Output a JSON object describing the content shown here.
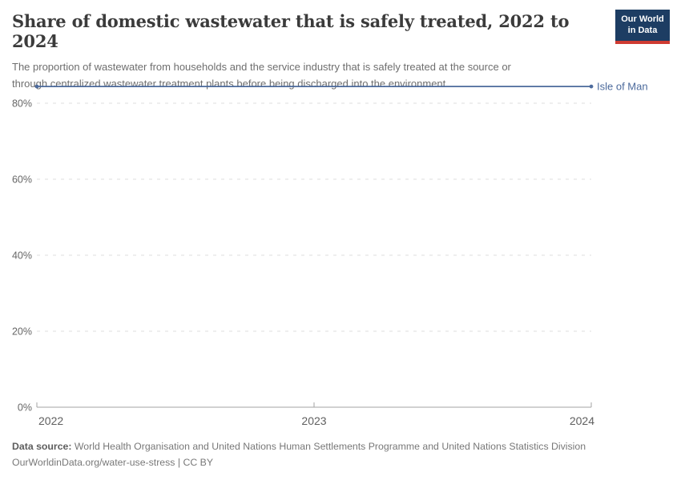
{
  "header": {
    "title": "Share of domestic wastewater that is safely treated, 2022 to 2024",
    "subtitle_lines": [
      "The proportion of wastewater from households and the service industry that is safely treated at the source or",
      "through centralized wastewater treatment plants before being discharged into the environment."
    ]
  },
  "logo": {
    "line1": "Our World",
    "line2": "in Data"
  },
  "footer": {
    "source_label": "Data source:",
    "source_text": " World Health Organisation and United Nations Human Settlements Programme and United Nations Statistics Division",
    "license_line": "OurWorldinData.org/water-use-stress | CC BY"
  },
  "colors": {
    "series_blue": "#4C6A9C",
    "grid": "#dcdcdc",
    "axis": "#a3a3a3",
    "tick_label": "#666666",
    "logo_navy": "#1d3d63",
    "logo_red": "#cf3b32"
  },
  "chart_data": {
    "type": "line",
    "title": "Share of domestic wastewater that is safely treated, 2022 to 2024",
    "xlabel": "",
    "ylabel": "",
    "x": [
      2022,
      2023,
      2024
    ],
    "x_labels": [
      "2022",
      "2023",
      "2024"
    ],
    "series": [
      {
        "name": "Isle of Man",
        "values": [
          84.4,
          84.4,
          84.4
        ],
        "color": "#4C6A9C"
      }
    ],
    "yticks": [
      {
        "value": 0,
        "label": "0%"
      },
      {
        "value": 20,
        "label": "20%"
      },
      {
        "value": 40,
        "label": "40%"
      },
      {
        "value": 60,
        "label": "60%"
      },
      {
        "value": 80,
        "label": "80%"
      }
    ],
    "ylim": [
      0,
      86
    ],
    "grid": "dashed-horizontal",
    "legend": "line-end-label"
  }
}
